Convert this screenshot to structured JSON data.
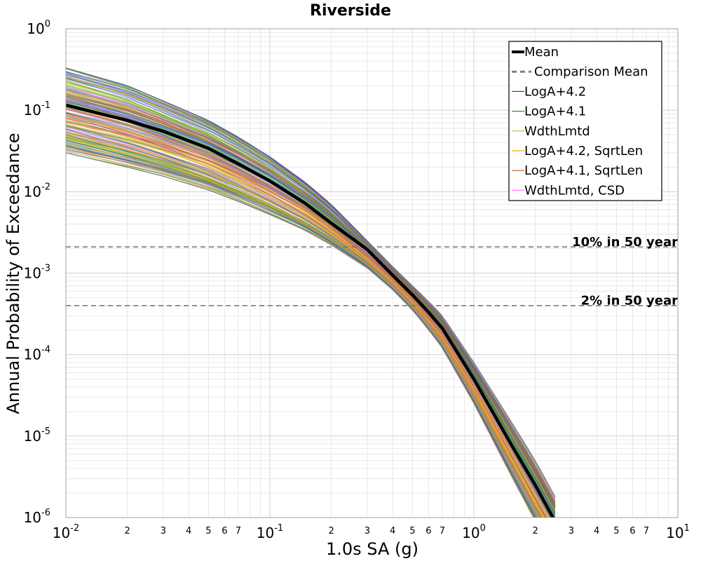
{
  "chart_data": {
    "type": "line",
    "title": "Riverside",
    "xlabel": "1.0s SA (g)",
    "ylabel": "Annual Probability of Exceedance",
    "x_scale": "log",
    "y_scale": "log",
    "xlim": [
      0.01,
      10
    ],
    "ylim": [
      1e-06,
      1
    ],
    "grid": true,
    "x_ticks": [
      {
        "base": "10",
        "exp": "-2",
        "value": 0.01
      },
      {
        "base": "10",
        "exp": "-1",
        "value": 0.1
      },
      {
        "base": "10",
        "exp": "0",
        "value": 1
      },
      {
        "base": "10",
        "exp": "1",
        "value": 10
      }
    ],
    "x_minor_tick_labels": [
      "2",
      "3",
      "4",
      "5",
      "6",
      "7"
    ],
    "y_ticks": [
      {
        "base": "10",
        "exp": "0",
        "value": 1
      },
      {
        "base": "10",
        "exp": "-1",
        "value": 0.1
      },
      {
        "base": "10",
        "exp": "-2",
        "value": 0.01
      },
      {
        "base": "10",
        "exp": "-3",
        "value": 0.001
      },
      {
        "base": "10",
        "exp": "-4",
        "value": 0.0001
      },
      {
        "base": "10",
        "exp": "-5",
        "value": 1e-05
      },
      {
        "base": "10",
        "exp": "-6",
        "value": 1e-06
      }
    ],
    "legend_position": "top-right",
    "legend": [
      {
        "label": "Mean",
        "color": "#000000",
        "style": "solid-thick"
      },
      {
        "label": "Comparison Mean",
        "color": "#808080",
        "style": "dashed"
      },
      {
        "label": "LogA+4.2",
        "color": "#1f4fd1",
        "style": "solid"
      },
      {
        "label": "LogA+4.1",
        "color": "#2a9a2a",
        "style": "solid"
      },
      {
        "label": "WdthLmtd",
        "color": "#9acd32",
        "style": "solid"
      },
      {
        "label": "LogA+4.2, SqrtLen",
        "color": "#ffa500",
        "style": "solid"
      },
      {
        "label": "LogA+4.1, SqrtLen",
        "color": "#c06030",
        "style": "solid"
      },
      {
        "label": "WdthLmtd, CSD",
        "color": "#ff80ff",
        "style": "solid"
      }
    ],
    "reference_lines": [
      {
        "label": "10% in 50 year",
        "y": 0.0021
      },
      {
        "label": "2% in 50 year",
        "y": 0.0004
      }
    ],
    "series": [
      {
        "name": "Mean",
        "color": "#000000",
        "x": [
          0.01,
          0.02,
          0.03,
          0.05,
          0.07,
          0.1,
          0.15,
          0.2,
          0.3,
          0.4,
          0.5,
          0.6,
          0.7,
          1.0,
          1.5,
          2.0,
          2.5
        ],
        "y": [
          0.115,
          0.075,
          0.055,
          0.034,
          0.022,
          0.0135,
          0.0071,
          0.0041,
          0.00195,
          0.00094,
          0.00054,
          0.00033,
          0.00021,
          5e-05,
          8.5e-06,
          2.5e-06,
          9e-07
        ]
      }
    ],
    "band": {
      "x": [
        0.01,
        0.02,
        0.03,
        0.05,
        0.07,
        0.1,
        0.15,
        0.2,
        0.3,
        0.4,
        0.5,
        0.6,
        0.7,
        1.0,
        1.5,
        2.0,
        2.5
      ],
      "y_low": [
        0.03,
        0.02,
        0.0155,
        0.0105,
        0.0076,
        0.0052,
        0.0033,
        0.0022,
        0.00115,
        0.00062,
        0.00035,
        0.0002,
        0.00012,
        2.5e-05,
        3.5e-06,
        9e-07,
        3.5e-07
      ],
      "y_high": [
        0.33,
        0.2,
        0.13,
        0.075,
        0.047,
        0.027,
        0.013,
        0.007,
        0.0025,
        0.0012,
        0.0007,
        0.00045,
        0.0003,
        8e-05,
        1.6e-05,
        5e-06,
        1.8e-06
      ]
    }
  }
}
